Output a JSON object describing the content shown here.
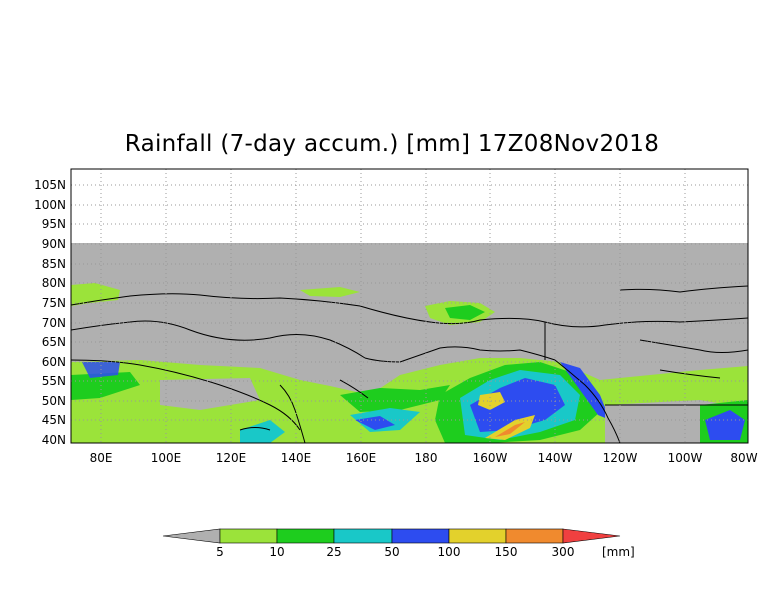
{
  "title": "Rainfall (7-day accum.) [mm] 17Z08Nov2018",
  "lat_labels": [
    "105N",
    "100N",
    "95N",
    "90N",
    "85N",
    "80N",
    "75N",
    "70N",
    "65N",
    "60N",
    "55N",
    "50N",
    "45N",
    "40N"
  ],
  "lon_labels": [
    "80E",
    "100E",
    "120E",
    "140E",
    "160E",
    "180",
    "160W",
    "140W",
    "120W",
    "100W",
    "80W"
  ],
  "colorbar": {
    "unit": "[mm]",
    "ticks": [
      "5",
      "10",
      "25",
      "50",
      "100",
      "150",
      "300"
    ],
    "colors": {
      "below": "#b0b0b0",
      "c1": "#9be33a",
      "c2": "#1ecd1e",
      "c3": "#19c8c8",
      "c4": "#2d4cf0",
      "c5": "#e3d12c",
      "c6": "#f08a2e",
      "above": "#f04040"
    }
  },
  "colors": {
    "no_data": "#b0b0b0",
    "coast": "#000000"
  }
}
